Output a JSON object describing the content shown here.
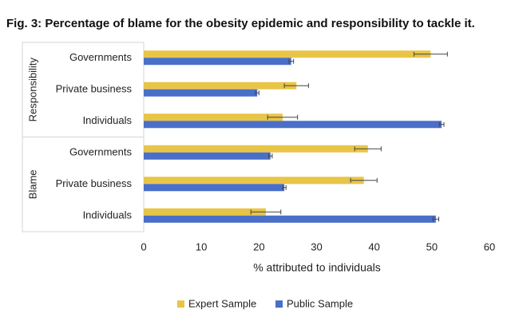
{
  "chart_data": {
    "type": "bar",
    "orientation": "horizontal",
    "title": "Fig. 3: Percentage of blame for the obesity epidemic and responsibility to tackle it.",
    "groups": [
      {
        "label": "Responsibility",
        "categories": [
          "Governments",
          "Private business",
          "Individuals"
        ]
      },
      {
        "label": "Blame",
        "categories": [
          "Governments",
          "Private business",
          "Individuals"
        ]
      }
    ],
    "series": [
      {
        "name": "Expert Sample",
        "color": "#e8c547",
        "values": [
          49.8,
          26.5,
          24.1,
          38.9,
          38.2,
          21.2
        ],
        "errors": [
          2.9,
          2.1,
          2.6,
          2.3,
          2.3,
          2.6
        ]
      },
      {
        "name": "Public Sample",
        "color": "#4a6fc9",
        "values": [
          25.6,
          19.7,
          51.7,
          22.0,
          24.4,
          50.7
        ],
        "errors": [
          0.4,
          0.3,
          0.4,
          0.3,
          0.3,
          0.5
        ]
      }
    ],
    "xlabel": "% attributed to individuals",
    "xlim": [
      0,
      60
    ],
    "xticks": [
      0,
      10,
      20,
      30,
      40,
      50,
      60
    ],
    "grid": false,
    "legend": "bottom"
  }
}
